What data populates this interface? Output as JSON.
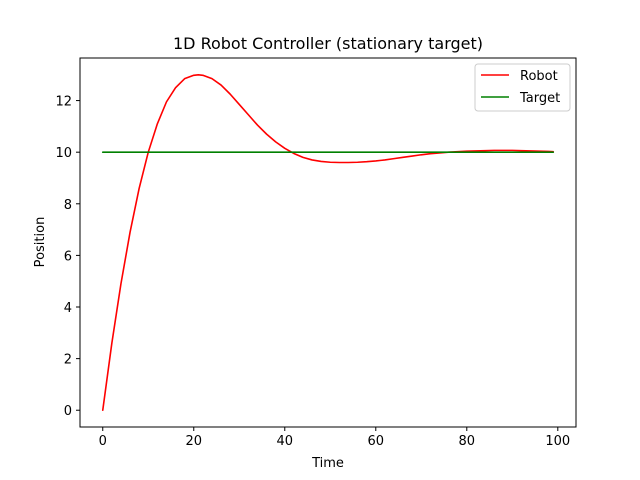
{
  "chart_data": {
    "type": "line",
    "title": "1D Robot Controller (stationary target)",
    "xlabel": "Time",
    "ylabel": "Position",
    "xlim": [
      -5,
      104
    ],
    "ylim": [
      -0.65,
      13.65
    ],
    "xticks": [
      "0",
      "20",
      "40",
      "60",
      "80",
      "100"
    ],
    "yticks": [
      "0",
      "2",
      "4",
      "6",
      "8",
      "10",
      "12"
    ],
    "legend_position": "upper-right",
    "grid": false,
    "series": [
      {
        "name": "Robot",
        "color": "#ff0000",
        "x": [
          0,
          2,
          4,
          6,
          8,
          10,
          12,
          14,
          16,
          18,
          20,
          21,
          22,
          24,
          26,
          28,
          30,
          32,
          34,
          36,
          38,
          40,
          42,
          44,
          46,
          48,
          50,
          52,
          54,
          56,
          58,
          60,
          62,
          64,
          66,
          68,
          70,
          72,
          74,
          76,
          78,
          80,
          82,
          84,
          86,
          88,
          90,
          92,
          94,
          96,
          98,
          99
        ],
        "y": [
          0,
          2.6,
          4.9,
          6.9,
          8.6,
          10.0,
          11.1,
          11.95,
          12.5,
          12.85,
          12.98,
          13.0,
          12.98,
          12.85,
          12.6,
          12.25,
          11.85,
          11.45,
          11.05,
          10.7,
          10.4,
          10.15,
          9.95,
          9.8,
          9.7,
          9.64,
          9.61,
          9.6,
          9.6,
          9.61,
          9.63,
          9.66,
          9.7,
          9.75,
          9.8,
          9.85,
          9.9,
          9.94,
          9.97,
          10.0,
          10.02,
          10.04,
          10.05,
          10.06,
          10.07,
          10.07,
          10.07,
          10.06,
          10.05,
          10.04,
          10.03,
          10.02
        ]
      },
      {
        "name": "Target",
        "color": "#008000",
        "x": [
          0,
          99
        ],
        "y": [
          10,
          10
        ]
      }
    ]
  }
}
